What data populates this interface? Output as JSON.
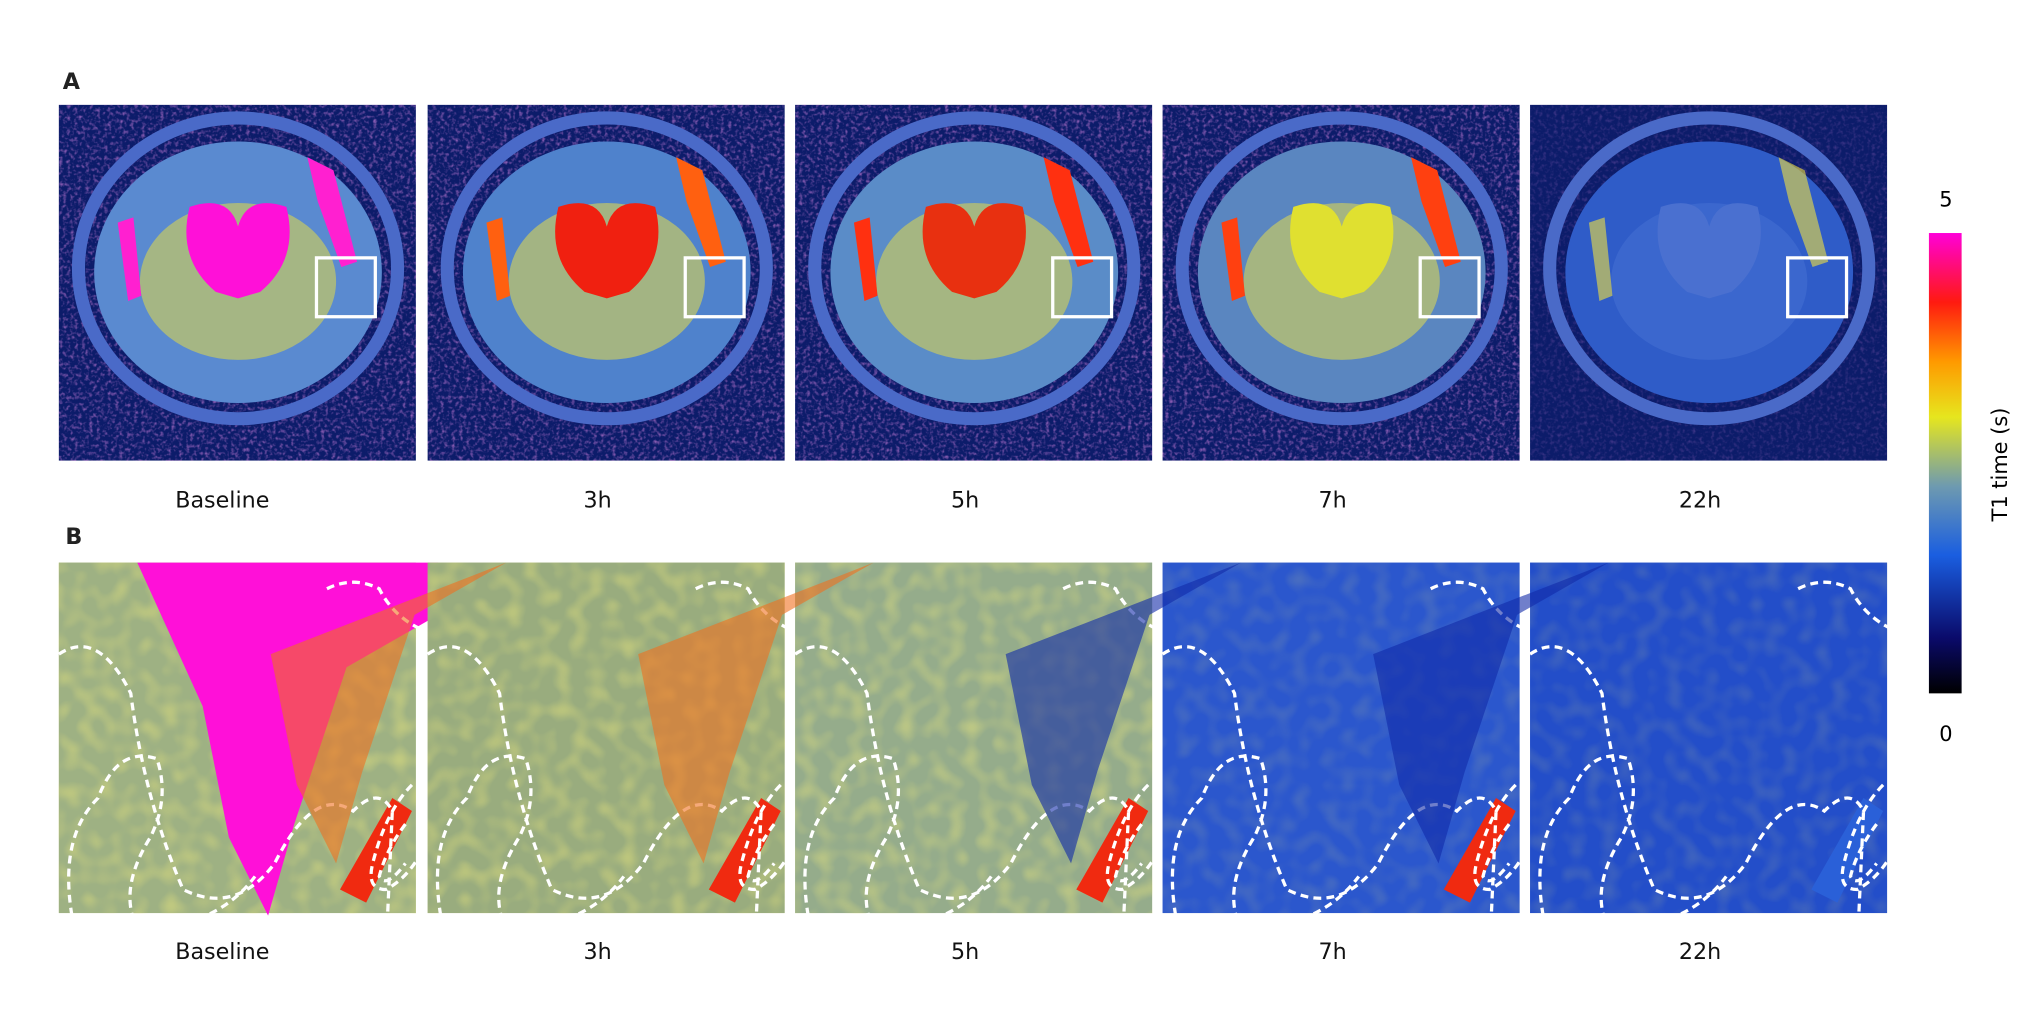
{
  "panel_a": {
    "label": "A",
    "captions": [
      "Baseline",
      "3h",
      "5h",
      "7h",
      "22h"
    ]
  },
  "panel_b": {
    "label": "B",
    "captions": [
      "Baseline",
      "3h",
      "5h",
      "7h",
      "22h"
    ]
  },
  "colorbar": {
    "label": "T1 time (s)",
    "lim": [
      0,
      5
    ],
    "ticks": [
      5,
      0
    ]
  }
}
